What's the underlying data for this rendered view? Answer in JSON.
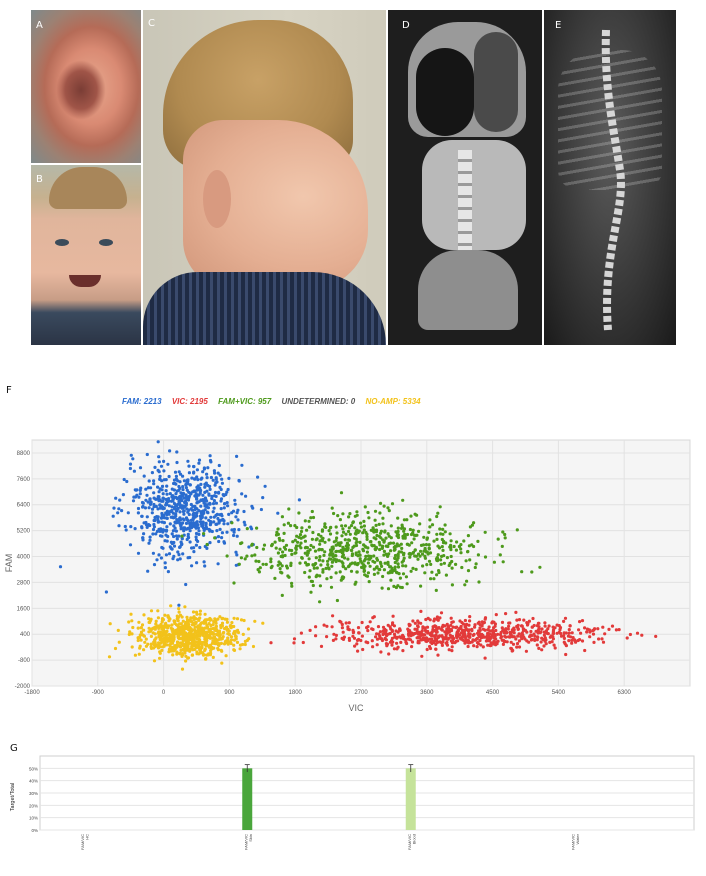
{
  "panels": {
    "a": "A",
    "b": "B",
    "c": "C",
    "d": "D",
    "e": "E",
    "f": "F",
    "g": "G"
  },
  "legend": [
    {
      "text": "FAM: 2213",
      "color": "#2a6ccf"
    },
    {
      "text": "VIC: 2195",
      "color": "#e23a3a"
    },
    {
      "text": "FAM+VIC: 957",
      "color": "#4e9a1c"
    },
    {
      "text": "UNDETERMINED: 0",
      "color": "#555555"
    },
    {
      "text": "NO-AMP: 5334",
      "color": "#f2c21b"
    }
  ],
  "chart_data": [
    {
      "type": "scatter",
      "xlabel": "VIC",
      "ylabel": "FAM",
      "xlim": [
        -1800,
        7200
      ],
      "ylim": [
        -2000,
        9400
      ],
      "xticks": [
        -1800,
        -900,
        0,
        900,
        1800,
        2700,
        3600,
        4500,
        5400,
        6300
      ],
      "yticks": [
        -2000,
        -800,
        400,
        1600,
        2800,
        4000,
        5200,
        6400,
        7600,
        8800
      ],
      "grid": true,
      "series": [
        {
          "name": "FAM",
          "color": "#2a6ccf",
          "count": 2213,
          "center": [
            300,
            6200
          ],
          "spread": [
            400,
            1100
          ]
        },
        {
          "name": "VIC",
          "color": "#e23a3a",
          "count": 2195,
          "center": [
            4100,
            400
          ],
          "spread": [
            900,
            350
          ]
        },
        {
          "name": "FAM+VIC",
          "color": "#4e9a1c",
          "count": 957,
          "center": [
            2800,
            4300
          ],
          "spread": [
            800,
            800
          ]
        },
        {
          "name": "NO-AMP",
          "color": "#f2c21b",
          "count": 5334,
          "center": [
            300,
            300
          ],
          "spread": [
            350,
            500
          ]
        }
      ]
    },
    {
      "type": "bar",
      "ylabel": "Target/Total",
      "categories": [
        "FAM/VIC HC",
        "FAM/VIC Skin",
        "FAM/VIC Blood",
        "FAM/VIC Water"
      ],
      "values": [
        0,
        50,
        50,
        0
      ],
      "errors": [
        0,
        3,
        3,
        0
      ],
      "yticks": [
        "0%",
        "10%",
        "20%",
        "30%",
        "40%",
        "50%"
      ],
      "ylim": [
        0,
        60
      ],
      "colors": [
        "#4aa63c",
        "#4aa63c",
        "#c5e39a",
        "#4aa63c"
      ]
    }
  ]
}
